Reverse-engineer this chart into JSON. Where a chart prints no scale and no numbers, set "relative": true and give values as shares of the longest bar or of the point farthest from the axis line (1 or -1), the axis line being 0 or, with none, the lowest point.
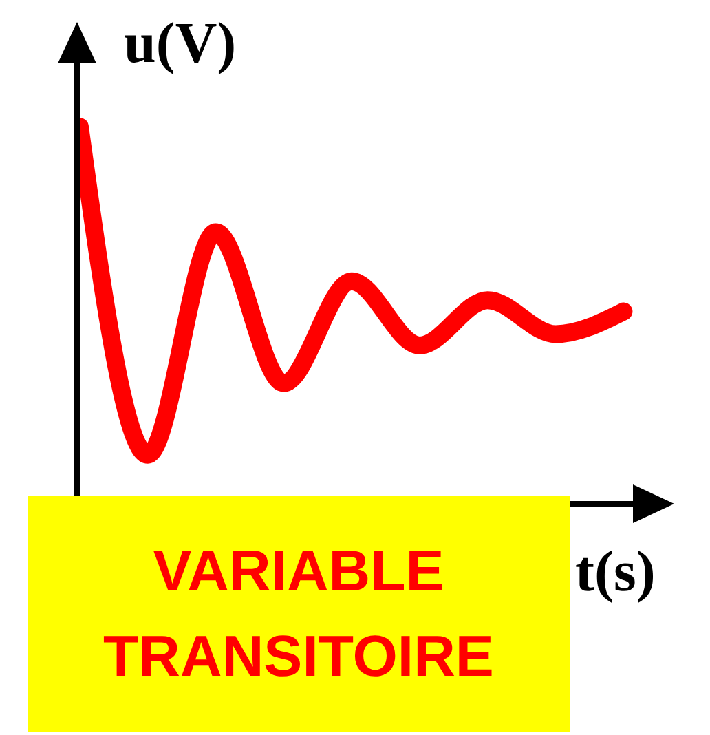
{
  "chart_data": {
    "type": "line",
    "relative": true,
    "xlabel": "t(s)",
    "ylabel": "u(V)",
    "annotations": [
      "VARIABLE TRANSITOIRE"
    ],
    "categories": [
      null,
      null,
      null,
      null,
      null,
      null,
      null,
      null,
      null
    ],
    "series": [
      {
        "color": "#ff0000",
        "values": [
          1,
          0.13,
          0.72,
          0.32,
          0.59,
          0.42,
          0.54,
          0.45,
          0.51
        ]
      }
    ]
  }
}
